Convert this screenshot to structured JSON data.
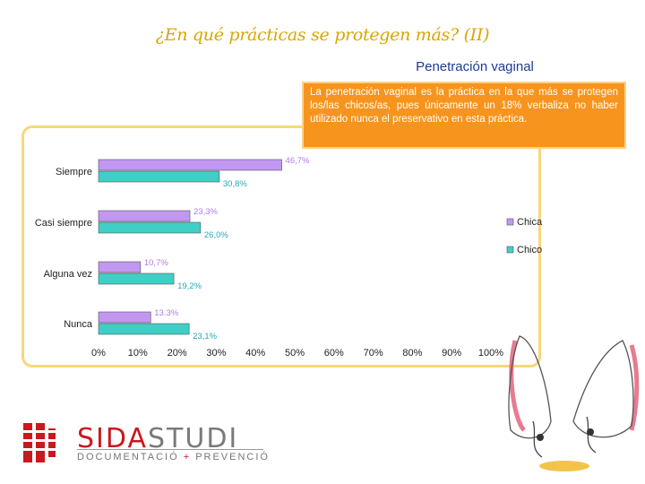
{
  "header": {
    "title": "¿En qué prácticas se protegen más? (II)",
    "subtitle": "Penetración vaginal"
  },
  "callout": {
    "text": "La penetración vaginal es la práctica en la que más se protegen los/las chicos/as, pues únicamente un 18% verbaliza no haber utilizado nunca el preservativo en esta práctica."
  },
  "logo": {
    "name_part1": "SIDA",
    "name_part2": "STUDI",
    "tagline_part1": "DOCUMENTACIÓ",
    "tagline_plus": " + ",
    "tagline_part2": "PREVENCIÓ"
  },
  "chart_data": {
    "type": "bar",
    "orientation": "horizontal",
    "categories": [
      "Siempre",
      "Casi siempre",
      "Alguna vez",
      "Nunca"
    ],
    "series": [
      {
        "name": "Chica",
        "color": "#c197f2",
        "labelColor": "#b27ae8",
        "values": [
          46.7,
          23.3,
          10.7,
          13.3
        ],
        "labels": [
          "46,7%",
          "23,3%",
          "10,7%",
          "13.3%"
        ]
      },
      {
        "name": "Chico",
        "color": "#3fcfc7",
        "labelColor": "#2aa8b8",
        "values": [
          30.8,
          26.0,
          19.2,
          23.1
        ],
        "labels": [
          "30,8%",
          "26,0%",
          "19,2%",
          "23,1%"
        ]
      }
    ],
    "xlim": [
      0,
      100
    ],
    "xticks": [
      "0%",
      "10%",
      "20%",
      "30%",
      "40%",
      "50%",
      "60%",
      "70%",
      "80%",
      "90%",
      "100%"
    ],
    "legend_position": "right",
    "legend": [
      "Chica",
      "Chico"
    ],
    "grid": false
  }
}
